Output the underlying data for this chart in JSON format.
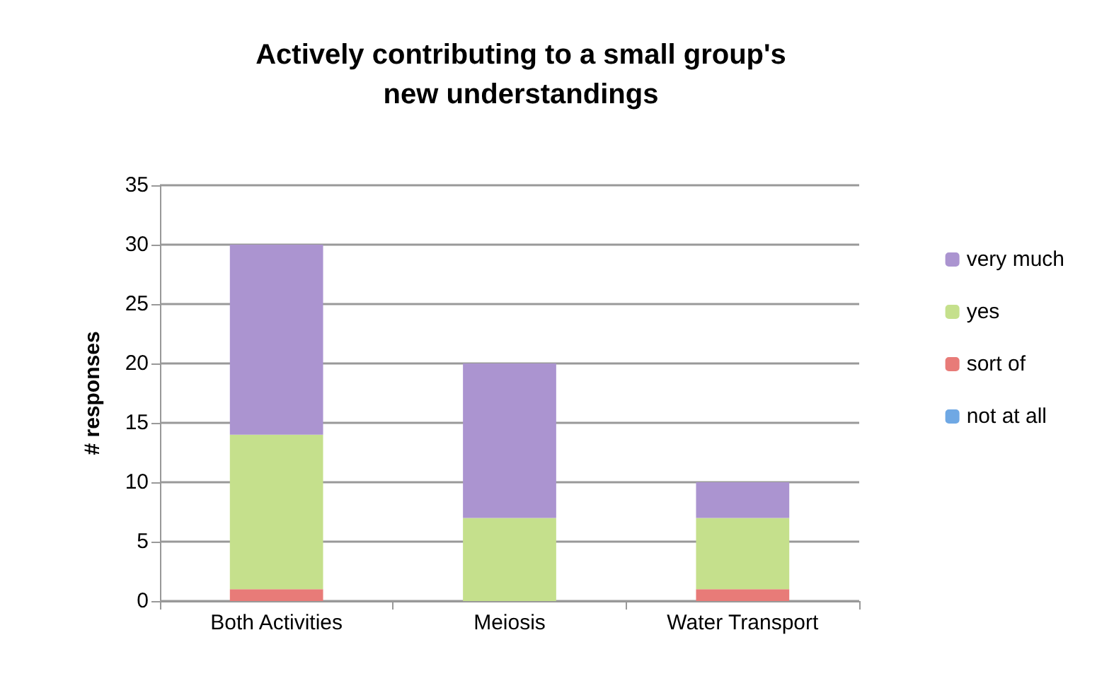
{
  "chart_data": {
    "type": "bar",
    "title": "Actively contributing to a small group's\nnew understandings",
    "ylabel": "# responses",
    "categories": [
      "Both Activities",
      "Meiosis",
      "Water Transport"
    ],
    "stacked": true,
    "ylim": [
      0,
      35
    ],
    "yticks": [
      0,
      5,
      10,
      15,
      20,
      25,
      30,
      35
    ],
    "grid": "y",
    "legend": "right",
    "series": [
      {
        "name": "not at all",
        "color": "#6fa8e4",
        "values": [
          0,
          0,
          0
        ]
      },
      {
        "name": "sort of",
        "color": "#e87b78",
        "values": [
          1,
          0,
          1
        ]
      },
      {
        "name": "yes",
        "color": "#c5e08c",
        "values": [
          13,
          7,
          6
        ]
      },
      {
        "name": "very much",
        "color": "#ab94d0",
        "values": [
          16,
          13,
          3
        ]
      }
    ]
  }
}
